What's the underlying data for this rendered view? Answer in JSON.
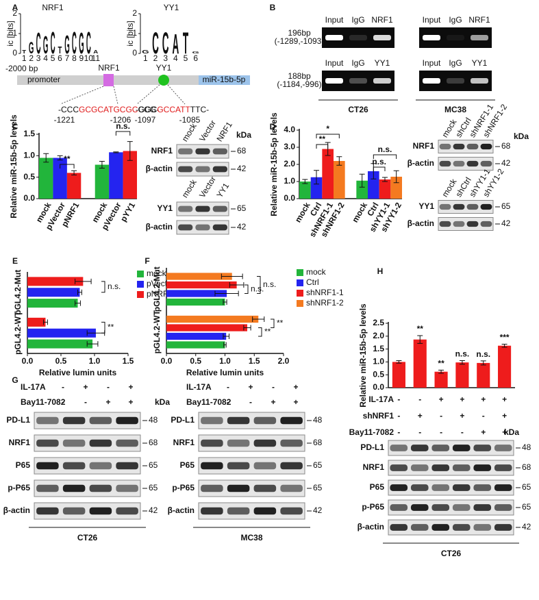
{
  "panel_letters": [
    "A",
    "B",
    "C",
    "D",
    "E",
    "F",
    "G",
    "H"
  ],
  "motifs": [
    {
      "name": "NRF1",
      "y_label": "ic [bits]",
      "yticks": [
        0,
        1,
        2
      ],
      "positions": [
        1,
        2,
        3,
        4,
        5,
        6,
        7,
        8,
        9,
        10,
        11
      ],
      "letters": [
        "T",
        "G",
        "C",
        "G",
        "C",
        "T",
        "G",
        "C",
        "G",
        "C",
        "A"
      ]
    },
    {
      "name": "YY1",
      "y_label": "ic [bits]",
      "yticks": [
        0,
        1,
        2
      ],
      "positions": [
        1,
        2,
        3,
        4,
        5,
        6
      ],
      "letters": [
        "G",
        "C",
        "C",
        "A",
        "T",
        "G"
      ]
    }
  ],
  "promoter_map": {
    "start": "-2000 bp",
    "region": "promoter",
    "gene": "miR-15b-5p",
    "sites": [
      {
        "name": "NRF1",
        "sequence": [
          "-CCC",
          "GCGCATGCGC",
          "CCG-"
        ],
        "positions": [
          -1221,
          -1206
        ]
      },
      {
        "name": "YY1",
        "sequence": [
          "-GGC",
          "GCCATT",
          "TTC-"
        ],
        "positions": [
          -1097,
          -1085
        ]
      }
    ]
  },
  "chip": {
    "rows": [
      {
        "size": "196bp",
        "region": "(-1289,-1093)",
        "lanes": [
          "Input",
          "IgG",
          "NRF1"
        ]
      },
      {
        "size": "188bp",
        "region": "(-1184,-996)",
        "lanes": [
          "Input",
          "IgG",
          "YY1"
        ]
      }
    ],
    "cells": [
      "CT26",
      "MC38"
    ]
  },
  "chart_data": [
    {
      "type": "bar",
      "y_label": "Relative miR-15b-5p levels",
      "categories": [
        "mock",
        "pVector",
        "pNRF1",
        "mock",
        "pVector",
        "pYY1"
      ],
      "values": [
        0.95,
        0.95,
        0.6,
        0.79,
        1.08,
        1.11
      ],
      "errors": [
        0.1,
        0.05,
        0.05,
        0.08,
        0.01,
        0.22
      ],
      "colors": [
        "#22b53b",
        "#2424f0",
        "#ee1c1c",
        "#22b53b",
        "#2424f0",
        "#ee1c1c"
      ],
      "ylim": [
        0,
        1.5
      ],
      "yticks": [
        {
          "value": 0,
          "label": "0.0"
        },
        0.5,
        {
          "value": 1,
          "label": "1.0"
        },
        1.5
      ],
      "annotations": [
        "**",
        "n.s."
      ]
    },
    {
      "type": "bar",
      "y_label": "Relative miR-15b-5p levels",
      "categories": [
        "mock",
        "Ctrl",
        "shNRF1-1",
        "shNRF1-2",
        "mock",
        "Ctrl",
        "shYY1-1",
        "shYY1-2"
      ],
      "values": [
        1.0,
        1.25,
        2.9,
        2.2,
        1.05,
        1.6,
        1.12,
        1.28
      ],
      "errors": [
        0.12,
        0.4,
        0.38,
        0.25,
        0.38,
        0.45,
        0.12,
        0.35
      ],
      "colors": [
        "#22b53b",
        "#2424f0",
        "#ee1c1c",
        "#f47a20",
        "#22b53b",
        "#2424f0",
        "#ee1c1c",
        "#f47a20"
      ],
      "ylim": [
        0,
        4
      ],
      "yticks": [
        {
          "value": 0,
          "label": "0.0"
        },
        {
          "value": 1,
          "label": "1.0"
        },
        {
          "value": 2,
          "label": "2.0"
        },
        {
          "value": 3,
          "label": "3.0"
        },
        {
          "value": 4,
          "label": "4.0"
        }
      ],
      "annotations": [
        "*",
        "**",
        "n.s.",
        "n.s."
      ]
    },
    {
      "type": "hbar",
      "x_label": "Relative lumin units",
      "categories": [
        "pGL4.2-Mut",
        "pGL4.2-WT"
      ],
      "series": [
        {
          "name": "mock",
          "color": "#22b53b",
          "values": [
            0.75,
            0.97
          ],
          "errors": [
            0.04,
            0.08
          ]
        },
        {
          "name": "pVector",
          "color": "#2424f0",
          "values": [
            0.78,
            1.02
          ],
          "errors": [
            0.03,
            0.13
          ]
        },
        {
          "name": "pNRF1",
          "color": "#ee1c1c",
          "values": [
            0.83,
            0.27
          ],
          "errors": [
            0.12,
            0.03
          ]
        }
      ],
      "xlim": [
        0,
        1.5
      ],
      "xticks": [
        {
          "value": 0,
          "label": "0.0"
        },
        0.5,
        {
          "value": 1,
          "label": "1.0"
        },
        1.5
      ],
      "legend": "right",
      "annotations": [
        "n.s.",
        "**"
      ]
    },
    {
      "type": "hbar",
      "x_label": "Relative lumin units",
      "categories": [
        "pGL4.2-Mut",
        "pGL4.2-WT"
      ],
      "series": [
        {
          "name": "mock",
          "color": "#22b53b",
          "values": [
            1.0,
            1.0
          ],
          "errors": [
            0.03,
            0.02
          ]
        },
        {
          "name": "Ctrl",
          "color": "#2424f0",
          "values": [
            1.03,
            1.02
          ],
          "errors": [
            0.2,
            0.05
          ]
        },
        {
          "name": "shNRF1-1",
          "color": "#ee1c1c",
          "values": [
            1.2,
            1.38
          ],
          "errors": [
            0.12,
            0.06
          ]
        },
        {
          "name": "shNRF1-2",
          "color": "#f47a20",
          "values": [
            1.12,
            1.57
          ],
          "errors": [
            0.18,
            0.1
          ]
        }
      ],
      "xlim": [
        0,
        2
      ],
      "xticks": [
        {
          "value": 0,
          "label": "0.0"
        },
        0.5,
        {
          "value": 1,
          "label": "1.0"
        },
        1.5,
        {
          "value": 2,
          "label": "2.0"
        }
      ],
      "legend": "right",
      "annotations": [
        "n.s.",
        "n.s.",
        "**",
        "**"
      ]
    },
    {
      "type": "bar",
      "y_label": "Relative miR-15b-5p levels",
      "values": [
        1.0,
        1.87,
        0.62,
        0.98,
        0.96,
        1.63
      ],
      "errors": [
        0.05,
        0.15,
        0.06,
        0.07,
        0.08,
        0.06
      ],
      "color": "#ee1c1c",
      "ylim": [
        0,
        2.5
      ],
      "yticks": [
        {
          "value": 0,
          "label": "0.0"
        },
        0.5,
        {
          "value": 1,
          "label": "1.0"
        },
        1.5,
        {
          "value": 2,
          "label": "2.0"
        },
        2.5
      ],
      "annotations": [
        null,
        "**",
        "**",
        "n.s.",
        "n.s.",
        "***"
      ],
      "conditions": [
        {
          "name": "IL-17A",
          "signs": [
            "-",
            "-",
            "+",
            "+",
            "+",
            "+"
          ]
        },
        {
          "name": "shNRF1",
          "signs": [
            "-",
            "+",
            "-",
            "+",
            "-",
            "+"
          ]
        },
        {
          "name": "Bay11-7082",
          "signs": [
            "-",
            "-",
            "-",
            "-",
            "+",
            "+"
          ]
        }
      ]
    }
  ],
  "blots": [
    {
      "lanes": [
        "mock",
        "Vector",
        "NRF1"
      ],
      "unit": "kDa",
      "rows": [
        {
          "label": "NRF1",
          "kda": 68
        },
        {
          "label": "β-actin",
          "kda": 42
        }
      ]
    },
    {
      "lanes": [
        "mock",
        "Vector",
        "YY1"
      ],
      "rows": [
        {
          "label": "YY1",
          "kda": 65
        },
        {
          "label": "β-actin",
          "kda": 42
        }
      ]
    },
    {
      "lanes": [
        "mock",
        "shCtrl",
        "shNRF1-1",
        "shNRF1-2"
      ],
      "unit": "kDa",
      "rows": [
        {
          "label": "NRF1",
          "kda": 68
        },
        {
          "label": "β-actin",
          "kda": 42
        }
      ]
    },
    {
      "lanes": [
        "mock",
        "shCtrl",
        "shYY1-1",
        "shYY1-2"
      ],
      "rows": [
        {
          "label": "YY1",
          "kda": 65
        },
        {
          "label": "β-actin",
          "kda": 42
        }
      ]
    },
    {
      "conditions": [
        {
          "name": "IL-17A",
          "signs": [
            "-",
            "+",
            "-",
            "+"
          ]
        },
        {
          "name": "Bay11-7082",
          "signs": [
            "-",
            "-",
            "+",
            "+"
          ]
        }
      ],
      "unit": "kDa",
      "cell": "CT26",
      "rows": [
        {
          "label": "PD-L1",
          "kda": 48
        },
        {
          "label": "NRF1",
          "kda": 68
        },
        {
          "label": "P65",
          "kda": 65
        },
        {
          "label": "p-P65",
          "kda": 65
        },
        {
          "label": "β-actin",
          "kda": 42
        }
      ]
    },
    {
      "conditions": [
        {
          "name": "IL-17A",
          "signs": [
            "-",
            "+",
            "-",
            "+"
          ]
        },
        {
          "name": "Bay11-7082",
          "signs": [
            "-",
            "-",
            "+",
            "+"
          ]
        }
      ],
      "cell": "MC38",
      "rows": [
        {
          "label": "PD-L1",
          "kda": 48
        },
        {
          "label": "NRF1",
          "kda": 68
        },
        {
          "label": "P65",
          "kda": 65
        },
        {
          "label": "p-P65",
          "kda": 65
        },
        {
          "label": "β-actin",
          "kda": 42
        }
      ]
    },
    {
      "unit": "kDa",
      "cell": "CT26",
      "rows": [
        {
          "label": "PD-L1",
          "kda": 48
        },
        {
          "label": "NRF1",
          "kda": 68
        },
        {
          "label": "P65",
          "kda": 65
        },
        {
          "label": "p-P65",
          "kda": 65
        },
        {
          "label": "β-actin",
          "kda": 42
        }
      ]
    }
  ]
}
